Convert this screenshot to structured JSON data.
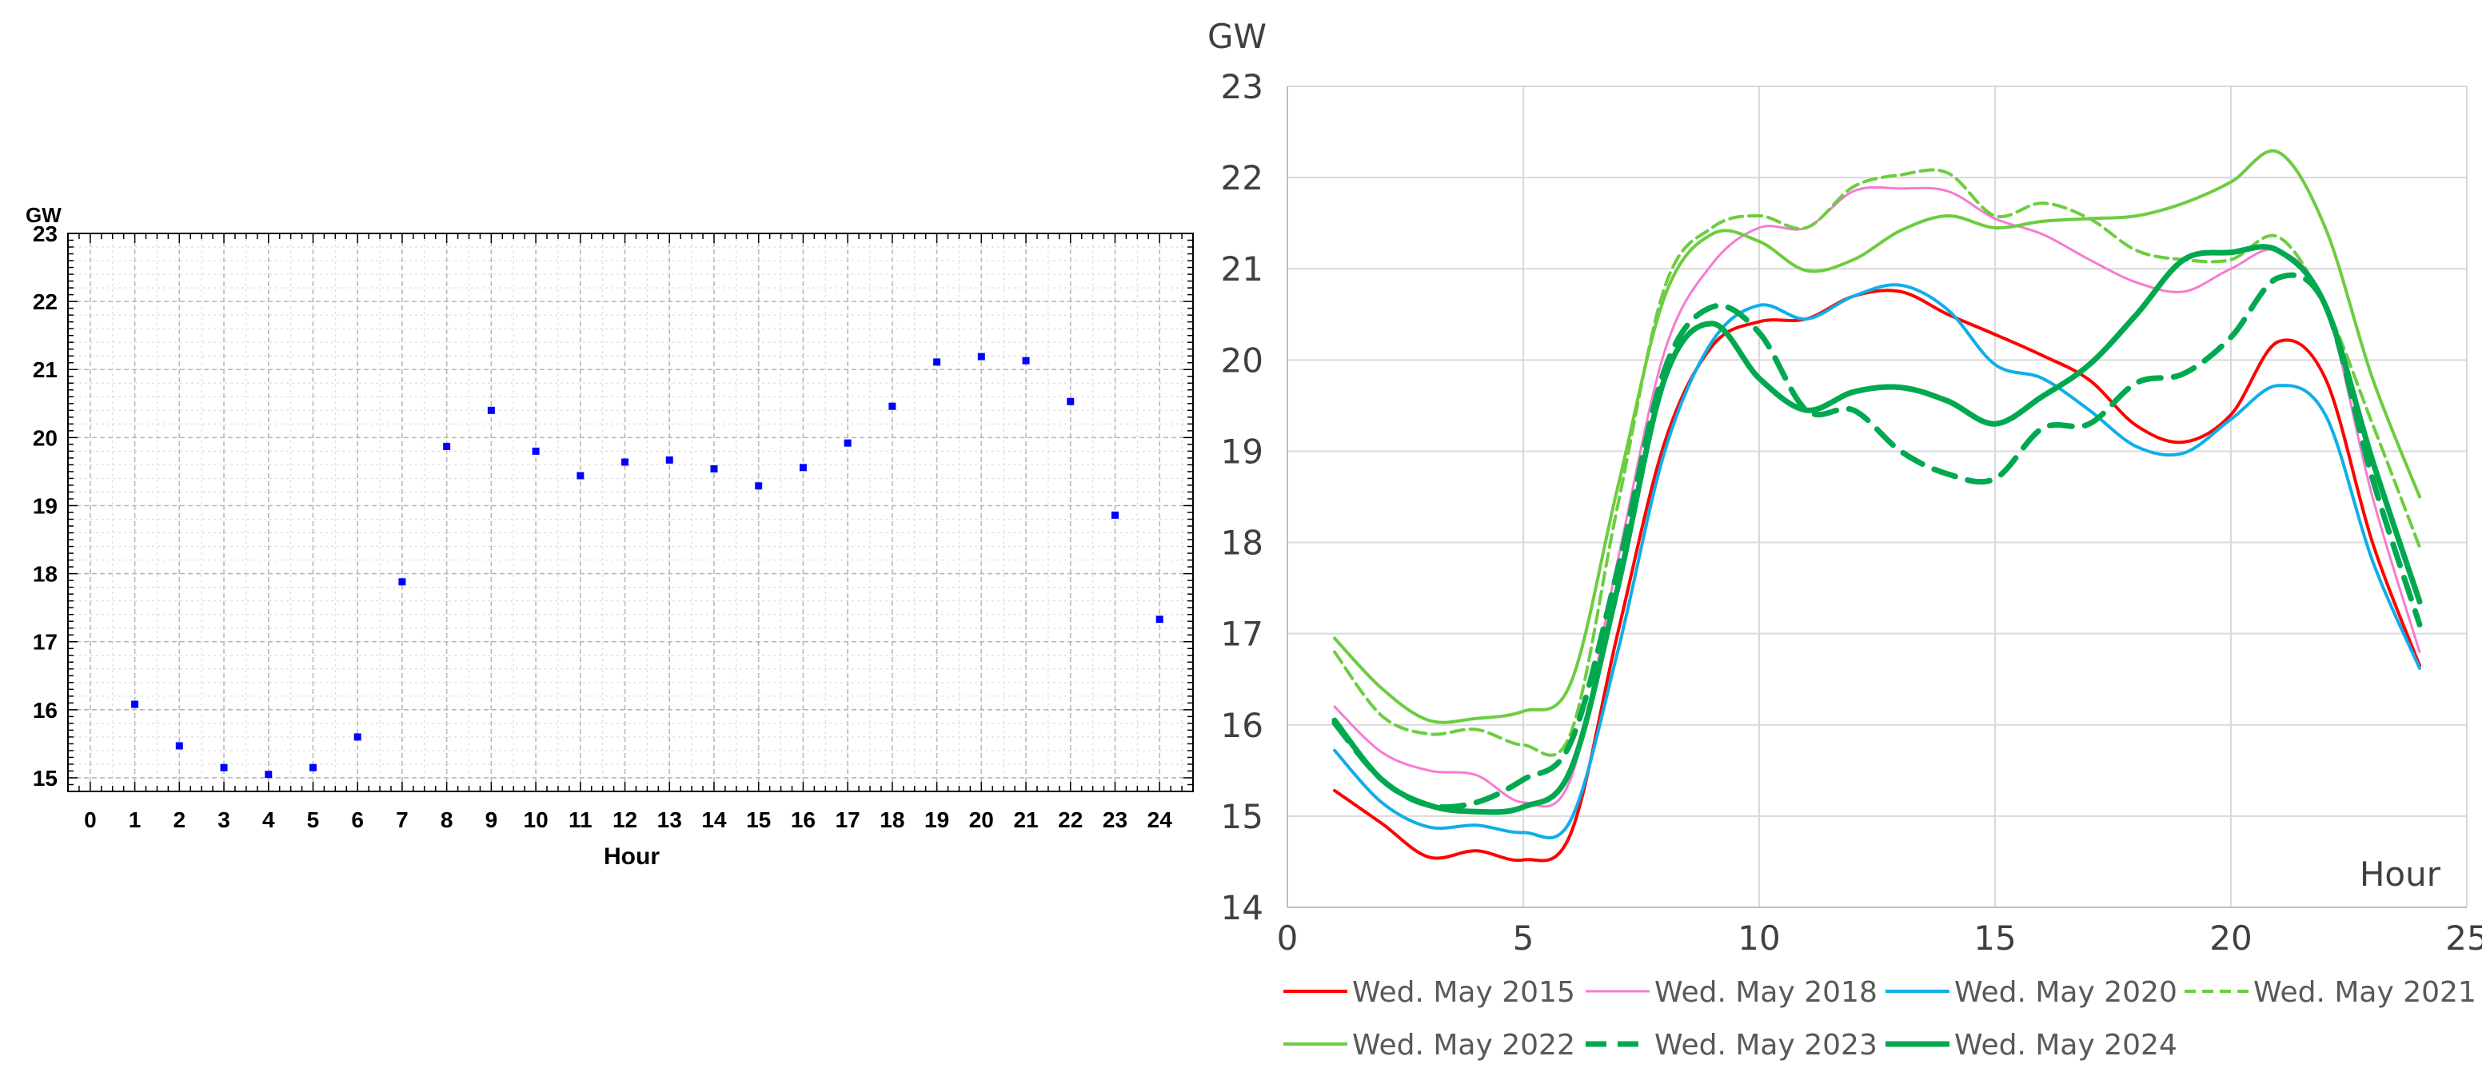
{
  "chart_data": [
    {
      "type": "scatter",
      "title": "",
      "ylabel": "GW",
      "xlabel": "Hour",
      "xlim": [
        -0.5,
        24.75
      ],
      "ylim": [
        14.8,
        23.0
      ],
      "xticks": [
        "0",
        "1",
        "2",
        "3",
        "4",
        "5",
        "6",
        "7",
        "8",
        "9",
        "10",
        "11",
        "12",
        "13",
        "14",
        "15",
        "16",
        "17",
        "18",
        "19",
        "20",
        "21",
        "22",
        "23",
        "24"
      ],
      "yticks": [
        "15",
        "16",
        "17",
        "18",
        "19",
        "20",
        "21",
        "22",
        "23"
      ],
      "grid": true,
      "marker_color": "#0000ff",
      "points": [
        {
          "x": 1,
          "y": 16.08
        },
        {
          "x": 2,
          "y": 15.47
        },
        {
          "x": 3,
          "y": 15.15
        },
        {
          "x": 4,
          "y": 15.05
        },
        {
          "x": 5,
          "y": 15.15
        },
        {
          "x": 6,
          "y": 15.6
        },
        {
          "x": 7,
          "y": 17.88
        },
        {
          "x": 8,
          "y": 19.87
        },
        {
          "x": 9,
          "y": 20.4
        },
        {
          "x": 10,
          "y": 19.8
        },
        {
          "x": 11,
          "y": 19.44
        },
        {
          "x": 12,
          "y": 19.64
        },
        {
          "x": 13,
          "y": 19.67
        },
        {
          "x": 14,
          "y": 19.54
        },
        {
          "x": 15,
          "y": 19.29
        },
        {
          "x": 16,
          "y": 19.56
        },
        {
          "x": 17,
          "y": 19.92
        },
        {
          "x": 18,
          "y": 20.46
        },
        {
          "x": 19,
          "y": 21.11
        },
        {
          "x": 20,
          "y": 21.19
        },
        {
          "x": 21,
          "y": 21.13
        },
        {
          "x": 22,
          "y": 20.53
        },
        {
          "x": 23,
          "y": 18.86
        },
        {
          "x": 24,
          "y": 17.33
        }
      ]
    },
    {
      "type": "line",
      "title": "",
      "ylabel": "GW",
      "xlabel": "Hour",
      "xlim": [
        0,
        25
      ],
      "ylim": [
        14,
        23
      ],
      "xticks": [
        "0",
        "5",
        "10",
        "15",
        "20",
        "25"
      ],
      "yticks": [
        "14",
        "15",
        "16",
        "17",
        "18",
        "19",
        "20",
        "21",
        "22",
        "23"
      ],
      "grid": true,
      "legend": "bottom",
      "x": [
        1,
        2,
        3,
        4,
        5,
        6,
        7,
        8,
        9,
        10,
        11,
        12,
        13,
        14,
        15,
        16,
        17,
        18,
        19,
        20,
        21,
        22,
        23,
        24
      ],
      "series": [
        {
          "name": "Wed. May 2015",
          "color": "#ff0000",
          "style": "solid",
          "width": 4,
          "values": [
            15.28,
            14.92,
            14.55,
            14.62,
            14.52,
            14.8,
            17.0,
            19.1,
            20.15,
            20.42,
            20.45,
            20.7,
            20.75,
            20.5,
            20.28,
            20.05,
            19.78,
            19.28,
            19.1,
            19.4,
            20.2,
            19.8,
            18.0,
            16.65
          ]
        },
        {
          "name": "Wed. May 2018",
          "color": "#f57bd0",
          "style": "solid",
          "width": 3,
          "values": [
            16.2,
            15.7,
            15.5,
            15.45,
            15.15,
            15.4,
            17.8,
            20.1,
            21.05,
            21.45,
            21.45,
            21.85,
            21.88,
            21.85,
            21.55,
            21.38,
            21.1,
            20.85,
            20.75,
            21.0,
            21.2,
            20.6,
            18.5,
            16.8
          ]
        },
        {
          "name": "Wed. May 2020",
          "color": "#10aee8",
          "style": "solid",
          "width": 4,
          "values": [
            15.72,
            15.15,
            14.88,
            14.9,
            14.82,
            14.95,
            16.8,
            19.0,
            20.2,
            20.6,
            20.45,
            20.7,
            20.82,
            20.55,
            19.95,
            19.8,
            19.45,
            19.05,
            18.98,
            19.35,
            19.72,
            19.4,
            17.8,
            16.62
          ]
        },
        {
          "name": "Wed. May 2021",
          "color": "#6ccd3f",
          "style": "dashed",
          "width": 4,
          "values": [
            16.8,
            16.1,
            15.9,
            15.95,
            15.78,
            15.9,
            18.4,
            20.8,
            21.45,
            21.58,
            21.45,
            21.9,
            22.03,
            22.05,
            21.58,
            21.72,
            21.55,
            21.2,
            21.1,
            21.1,
            21.35,
            20.6,
            19.3,
            17.95
          ]
        },
        {
          "name": "Wed. May 2022",
          "color": "#6ccd3f",
          "style": "solid",
          "width": 4,
          "values": [
            16.95,
            16.4,
            16.05,
            16.07,
            16.15,
            16.45,
            18.6,
            20.7,
            21.38,
            21.3,
            20.98,
            21.1,
            21.42,
            21.58,
            21.45,
            21.52,
            21.55,
            21.58,
            21.72,
            21.95,
            22.28,
            21.45,
            19.8,
            18.5
          ]
        },
        {
          "name": "Wed. May 2023",
          "color": "#00a84f",
          "style": "dashed",
          "width": 7,
          "values": [
            16.02,
            15.4,
            15.12,
            15.15,
            15.4,
            15.8,
            17.7,
            19.9,
            20.58,
            20.3,
            19.45,
            19.45,
            19.0,
            18.75,
            18.7,
            19.25,
            19.3,
            19.75,
            19.85,
            20.25,
            20.9,
            20.6,
            18.7,
            17.1
          ]
        },
        {
          "name": "Wed. May 2024",
          "color": "#00a84f",
          "style": "solid",
          "width": 7,
          "values": [
            16.05,
            15.4,
            15.12,
            15.05,
            15.1,
            15.5,
            17.5,
            19.8,
            20.4,
            19.8,
            19.45,
            19.65,
            19.7,
            19.55,
            19.3,
            19.6,
            19.95,
            20.5,
            21.1,
            21.18,
            21.2,
            20.6,
            18.9,
            17.35
          ]
        }
      ]
    }
  ]
}
